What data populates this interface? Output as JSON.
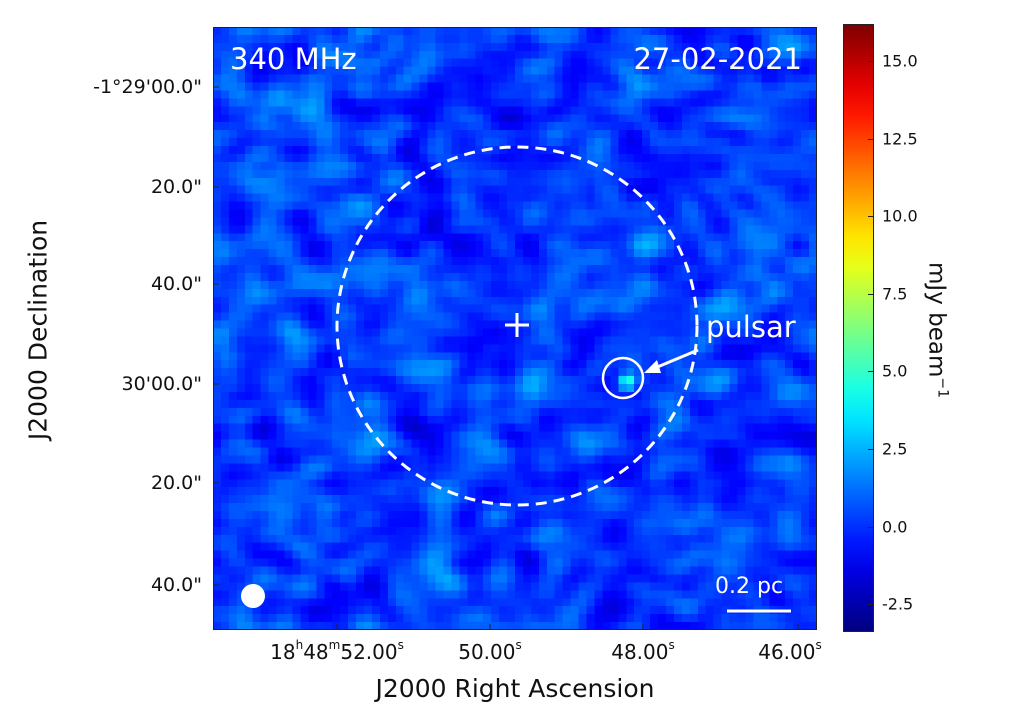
{
  "chart_data": {
    "type": "heatmap",
    "description_labels": {
      "frequency": "340 MHz",
      "date": "27-02-2021"
    },
    "xlabel": "J2000 Right Ascension",
    "ylabel": "J2000 Declination",
    "x_ticks": [
      {
        "h": "18",
        "m": "48",
        "s": "52.00"
      },
      {
        "s": "50.00"
      },
      {
        "s": "48.00"
      },
      {
        "s": "46.00"
      }
    ],
    "y_ticks": [
      "-1°29'00.0\"",
      "20.0\"",
      "40.0\"",
      "30'00.0\"",
      "20.0\"",
      "40.0\""
    ],
    "colorbar": {
      "label": "mJy beam",
      "label_exp": "−1",
      "colormap": "jet",
      "range": [
        -3.4,
        16.2
      ],
      "ticks": [
        15.0,
        12.5,
        10.0,
        7.5,
        5.0,
        2.5,
        0.0,
        -2.5
      ],
      "tick_labels": [
        "15.0",
        "12.5",
        "10.0",
        "7.5",
        "5.0",
        "2.5",
        "0.0",
        "-2.5"
      ]
    },
    "annotations": {
      "pulsar_label": "pulsar",
      "pulsar_peak_mJy": 5.5,
      "scale_bar": "0.2 pc"
    },
    "colors": {
      "overlay": "#ffffff",
      "background_noise": "#1a4cff"
    }
  }
}
